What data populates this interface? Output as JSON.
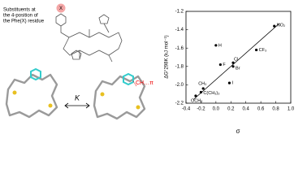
{
  "chart_data": {
    "type": "scatter",
    "y_label": "ΔG°298K (kJ mol⁻¹)",
    "x_label": "σ",
    "series": [
      {
        "color": "#000000",
        "x": [
          0.78,
          0.0,
          0.54,
          0.06,
          0.23,
          0.23,
          0.18,
          -0.17,
          -0.2,
          -0.27
        ],
        "values": [
          -1.36,
          -1.57,
          -1.62,
          -1.78,
          -1.76,
          -1.8,
          -1.98,
          -2.04,
          -2.08,
          -2.12
        ],
        "point_labels": [
          "NO₂",
          "H",
          "CF₃",
          "F",
          "Cl",
          "Br",
          "I",
          "CH₃",
          "C(CH₃)₃",
          "OCH₃"
        ]
      }
    ],
    "trendline": {
      "x": [
        -0.3,
        0.85
      ],
      "y": [
        -2.16,
        -1.33
      ]
    },
    "xlim": [
      -0.4,
      1.0
    ],
    "xticks": [
      -0.4,
      -0.2,
      {
        "value": 0,
        "label": "0.0"
      },
      0.2,
      0.4,
      0.6,
      0.8,
      {
        "value": 1,
        "label": "1.0"
      }
    ],
    "ylim": [
      -2.2,
      -1.2
    ],
    "yticks": [
      {
        "value": -2.2,
        "label": "-2.2"
      },
      {
        "value": -2,
        "label": "-2.0"
      },
      -1.8,
      -1.6,
      -1.4,
      -1.2
    ]
  },
  "figure": {
    "caption_lines": [
      "Substituents at",
      "the 4-position of",
      "the Phe(X) residue"
    ],
    "substituent": "X",
    "equilibrium": "K",
    "interaction": "CH…π"
  }
}
